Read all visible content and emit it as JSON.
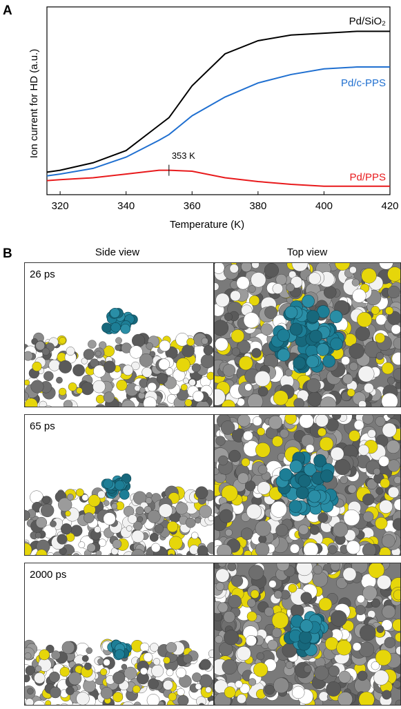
{
  "panel_labels": [
    "A",
    "B"
  ],
  "chart_data": {
    "type": "line",
    "x_label": "Temperature (K)",
    "y_label": "Ion current for HD (a.u.)",
    "x": [
      316,
      320,
      330,
      340,
      350,
      353,
      360,
      370,
      380,
      390,
      400,
      410,
      420
    ],
    "series": [
      {
        "name": "Pd/SiO₂",
        "color": "#000000",
        "values": [
          12,
          13,
          17,
          23.5,
          37,
          41,
          58,
          75,
          82,
          85,
          86,
          87,
          87
        ]
      },
      {
        "name": "Pd/c-PPS",
        "color": "#1f6fd0",
        "values": [
          10,
          11,
          14,
          20,
          29,
          32,
          42,
          52,
          59.5,
          64,
          67,
          68,
          68
        ]
      },
      {
        "name": "Pd/PPS",
        "color": "#e8191b",
        "values": [
          7.5,
          8,
          9,
          11,
          13,
          13,
          12.5,
          9,
          7,
          5.5,
          4.5,
          4.5,
          4.5
        ]
      }
    ],
    "xlim": [
      316,
      420
    ],
    "ylim": [
      0,
      100
    ],
    "xticks": [
      320,
      340,
      360,
      380,
      400,
      420
    ],
    "annotations": [
      {
        "label": "353 K",
        "x": 353,
        "y": 13
      }
    ]
  },
  "simulation": {
    "column_headers": [
      "Side view",
      "Top view"
    ],
    "snapshots": [
      "26 ps",
      "65 ps",
      "2000 ps"
    ]
  }
}
